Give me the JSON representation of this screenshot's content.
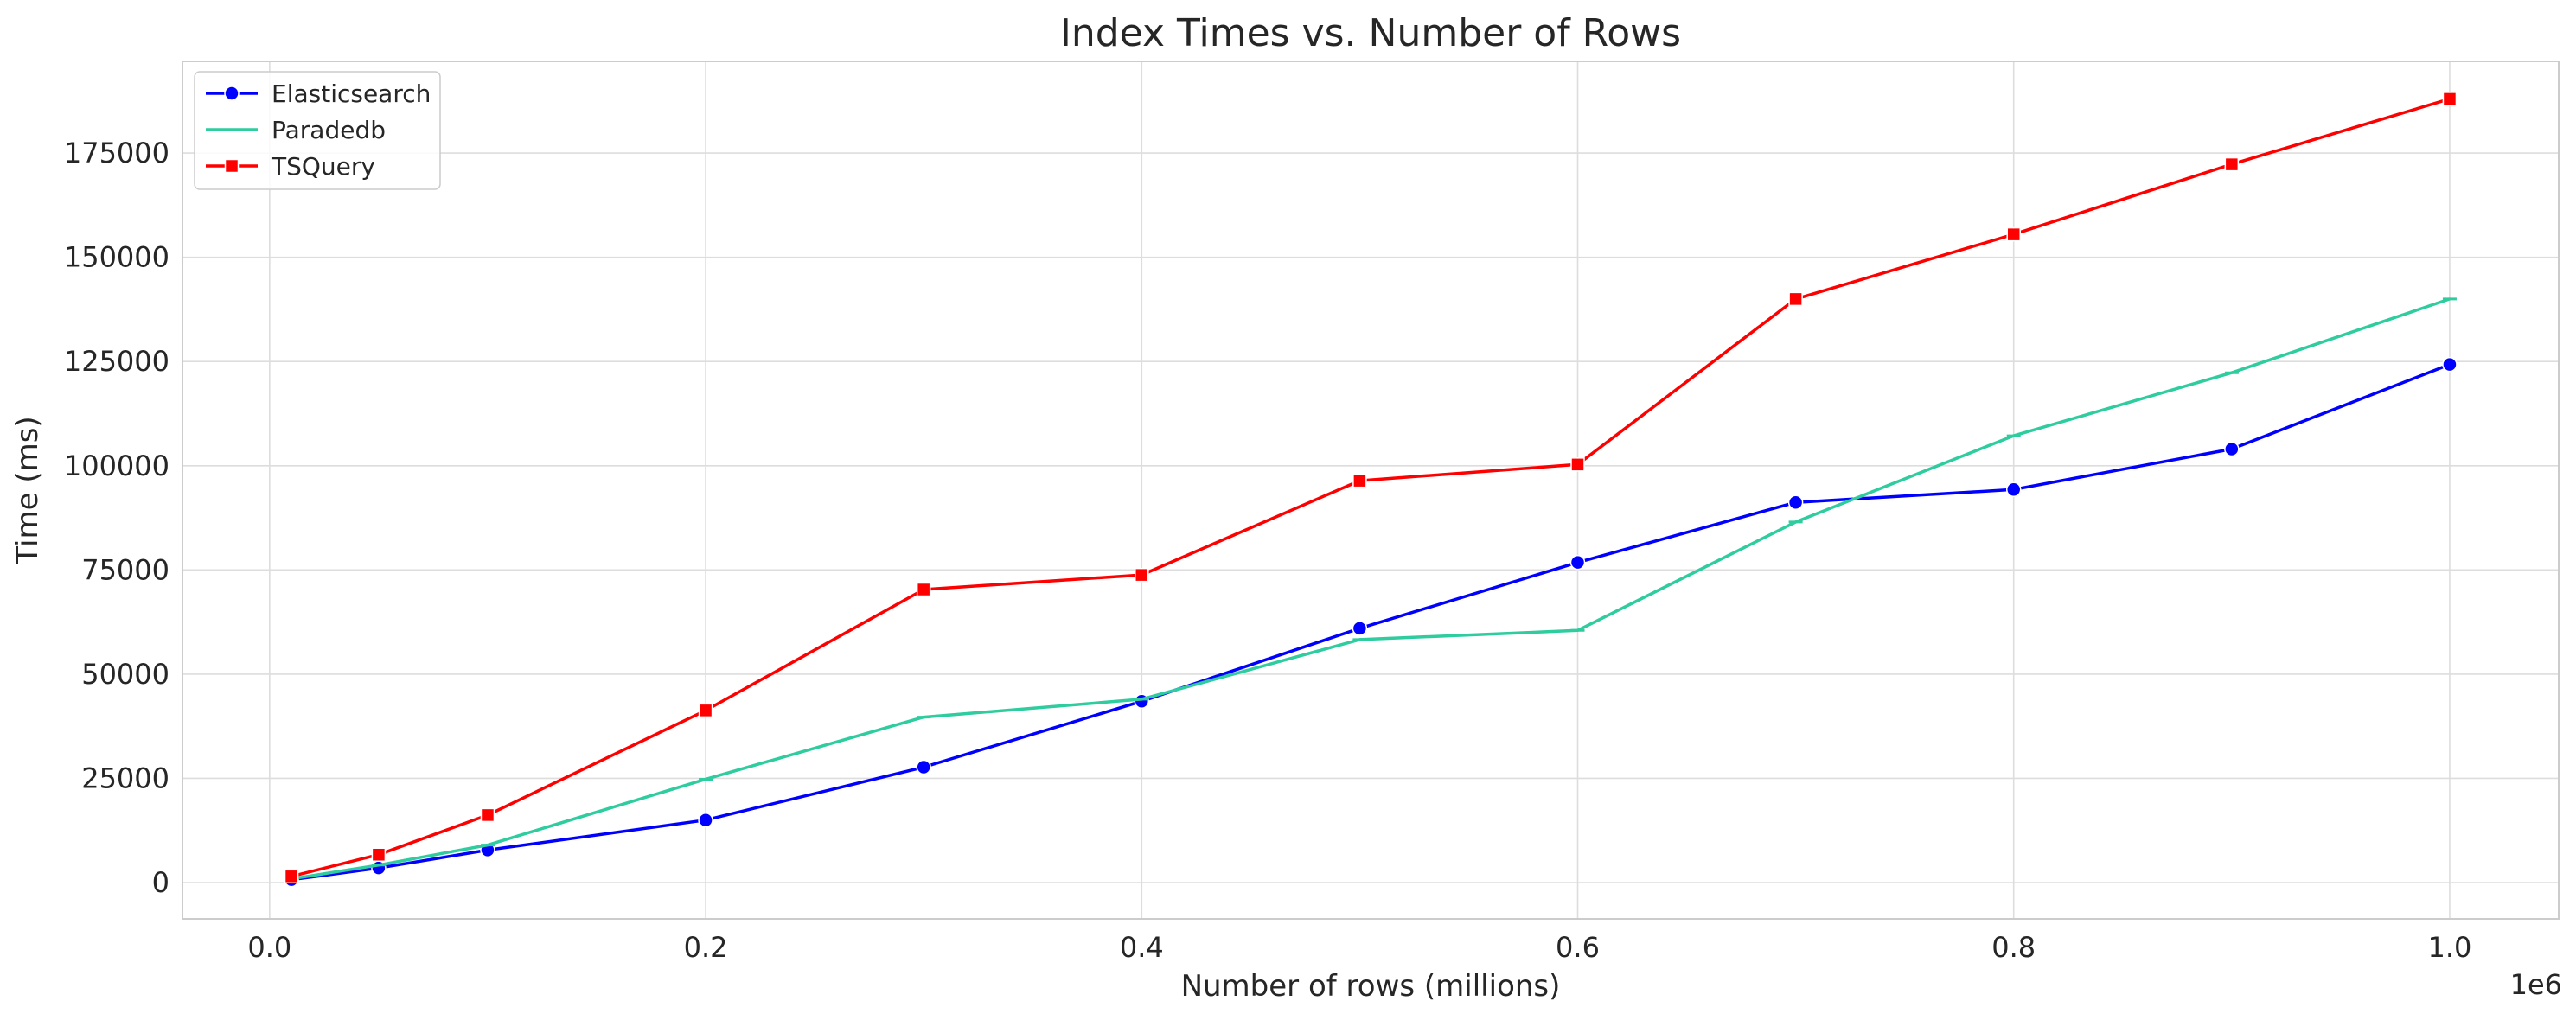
{
  "chart_data": {
    "type": "line",
    "title": "Index Times vs. Number of Rows",
    "xlabel": "Number of rows (millions)",
    "ylabel": "Time (ms)",
    "x_offset_text": "1e6",
    "xlim": [
      -0.04,
      1.05
    ],
    "ylim": [
      -8700,
      197000
    ],
    "x_ticks": [
      0.0,
      0.2,
      0.4,
      0.6,
      0.8,
      1.0
    ],
    "x_tick_labels": [
      "0.0",
      "0.2",
      "0.4",
      "0.6",
      "0.8",
      "1.0"
    ],
    "y_ticks": [
      0,
      25000,
      50000,
      75000,
      100000,
      125000,
      150000,
      175000
    ],
    "y_tick_labels": [
      "0",
      "25000",
      "50000",
      "75000",
      "100000",
      "125000",
      "150000",
      "175000"
    ],
    "grid": true,
    "legend_position": "top-left",
    "x": [
      0.01,
      0.05,
      0.1,
      0.2,
      0.3,
      0.4,
      0.5,
      0.6,
      0.7,
      0.8,
      0.9,
      1.0
    ],
    "series": [
      {
        "name": "Elasticsearch",
        "color": "#0000ff",
        "marker": "circle",
        "values": [
          700,
          3500,
          7800,
          15000,
          27700,
          43500,
          61000,
          76800,
          91200,
          94300,
          104000,
          124300
        ]
      },
      {
        "name": "Paradedb",
        "color": "#2ecc9e",
        "marker": "hline",
        "values": [
          900,
          4200,
          9000,
          24800,
          39700,
          44000,
          58300,
          60500,
          86500,
          107200,
          122300,
          140000
        ]
      },
      {
        "name": "TSQuery",
        "color": "#ff0000",
        "marker": "square",
        "values": [
          1500,
          6700,
          16200,
          41300,
          70300,
          73800,
          96400,
          100300,
          140000,
          155500,
          172300,
          188000
        ]
      }
    ]
  }
}
